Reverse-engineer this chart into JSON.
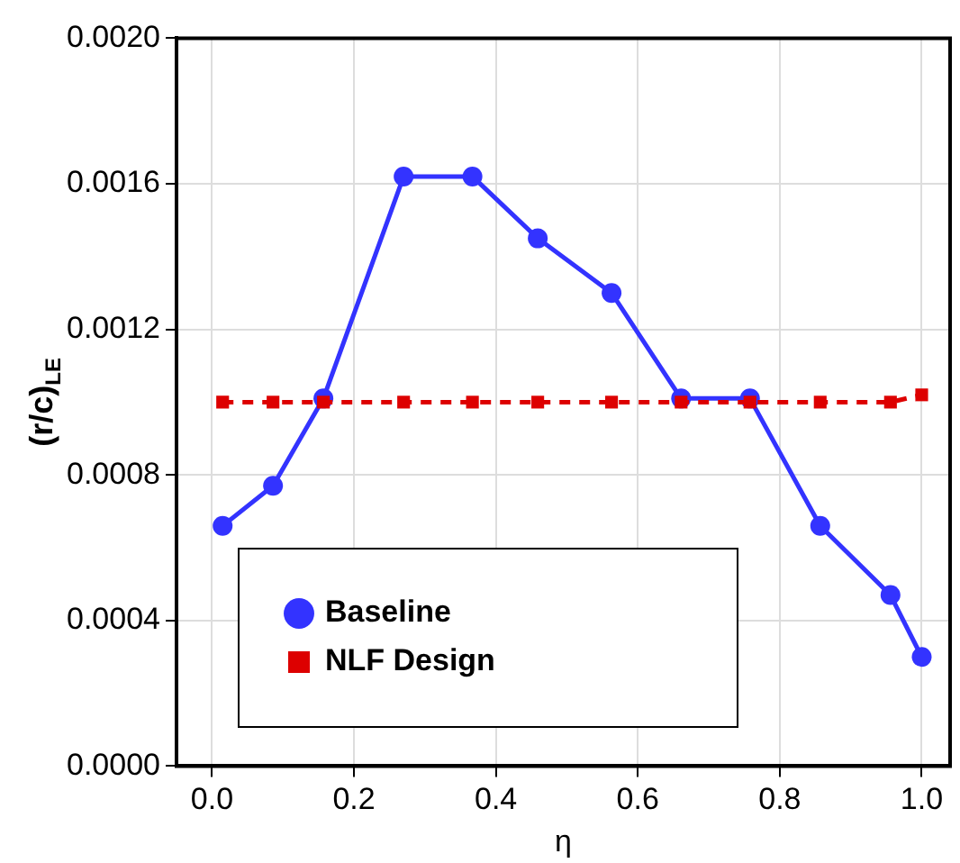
{
  "chart_data": {
    "type": "line",
    "xlabel": "η",
    "ylabel": "(r/c)$_{LE}$",
    "xlim": [
      -0.05,
      1.04
    ],
    "ylim": [
      0,
      0.002
    ],
    "xticks": [
      {
        "value": 0,
        "label": "0.0"
      },
      {
        "value": 0.2,
        "label": "0.2"
      },
      {
        "value": 0.4,
        "label": "0.4"
      },
      {
        "value": 0.6,
        "label": "0.6"
      },
      {
        "value": 0.8,
        "label": "0.8"
      },
      {
        "value": 1,
        "label": "1.0"
      }
    ],
    "yticks": [
      {
        "value": 0,
        "label": "0.0000"
      },
      {
        "value": 0.0004,
        "label": "0.0004"
      },
      {
        "value": 0.0008,
        "label": "0.0008"
      },
      {
        "value": 0.0012,
        "label": "0.0012"
      },
      {
        "value": 0.0016,
        "label": "0.0016"
      },
      {
        "value": 0.002,
        "label": "0.0020"
      }
    ],
    "grid": true,
    "legend": "bottom",
    "x": [
      0.015,
      0.086,
      0.157,
      0.27,
      0.367,
      0.459,
      0.563,
      0.661,
      0.758,
      0.857,
      0.956,
      1.0
    ],
    "series": [
      {
        "name": "Baseline",
        "color": "#3333ff",
        "marker": "circle",
        "line_style": "solid",
        "values": [
          0.00066,
          0.00077,
          0.00101,
          0.00162,
          0.00162,
          0.00145,
          0.0013,
          0.00101,
          0.00101,
          0.00066,
          0.00047,
          0.0003
        ]
      },
      {
        "name": "NLF Design",
        "color": "#dd0000",
        "marker": "square",
        "line_style": "dashed",
        "values": [
          0.001,
          0.001,
          0.001,
          0.001,
          0.001,
          0.001,
          0.001,
          0.001,
          0.001,
          0.001,
          0.001,
          0.00102
        ]
      }
    ]
  }
}
